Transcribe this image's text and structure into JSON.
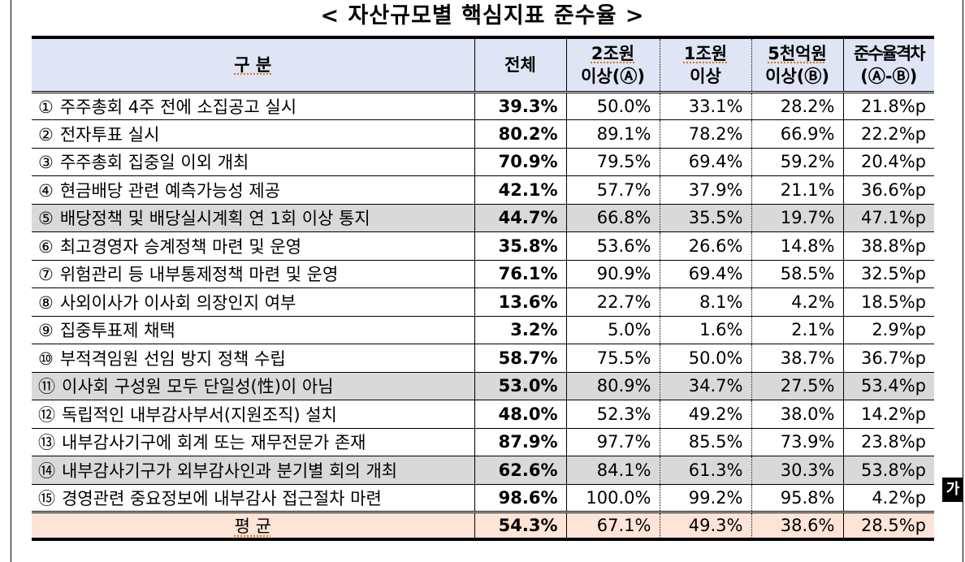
{
  "title": "< 자산규모별 핵심지표 준수율 >",
  "header": {
    "category": "구 분",
    "total": "전체",
    "col_2t_line1": "2조원",
    "col_2t_line2": "이상(Ⓐ)",
    "col_1t_line1": "1조원",
    "col_1t_line2": "이상",
    "col_500b_line1": "5천억원",
    "col_500b_line2": "이상(Ⓑ)",
    "col_gap_line1": "준수율격차",
    "col_gap_line2": "(Ⓐ-Ⓑ)"
  },
  "rows": [
    {
      "no": "①",
      "label": "주주총회 4주 전에 소집공고 실시",
      "total": "39.3%",
      "t2": "50.0%",
      "t1": "33.1%",
      "b500": "28.2%",
      "gap": "21.8%p",
      "shaded": false
    },
    {
      "no": "②",
      "label": "전자투표 실시",
      "total": "80.2%",
      "t2": "89.1%",
      "t1": "78.2%",
      "b500": "66.9%",
      "gap": "22.2%p",
      "shaded": false
    },
    {
      "no": "③",
      "label": "주주총회 집중일 이외 개최",
      "total": "70.9%",
      "t2": "79.5%",
      "t1": "69.4%",
      "b500": "59.2%",
      "gap": "20.4%p",
      "shaded": false
    },
    {
      "no": "④",
      "label": "현금배당 관련 예측가능성 제공",
      "total": "42.1%",
      "t2": "57.7%",
      "t1": "37.9%",
      "b500": "21.1%",
      "gap": "36.6%p",
      "shaded": false
    },
    {
      "no": "⑤",
      "label": "배당정책 및 배당실시계획 연 1회 이상 통지",
      "total": "44.7%",
      "t2": "66.8%",
      "t1": "35.5%",
      "b500": "19.7%",
      "gap": "47.1%p",
      "shaded": true
    },
    {
      "no": "⑥",
      "label": "최고경영자 승계정책 마련 및 운영",
      "total": "35.8%",
      "t2": "53.6%",
      "t1": "26.6%",
      "b500": "14.8%",
      "gap": "38.8%p",
      "shaded": false
    },
    {
      "no": "⑦",
      "label": "위험관리 등 내부통제정책 마련 및 운영",
      "total": "76.1%",
      "t2": "90.9%",
      "t1": "69.4%",
      "b500": "58.5%",
      "gap": "32.5%p",
      "shaded": false
    },
    {
      "no": "⑧",
      "label": "사외이사가 이사회 의장인지 여부",
      "total": "13.6%",
      "t2": "22.7%",
      "t1": "8.1%",
      "b500": "4.2%",
      "gap": "18.5%p",
      "shaded": false
    },
    {
      "no": "⑨",
      "label": "집중투표제 채택",
      "total": "3.2%",
      "t2": "5.0%",
      "t1": "1.6%",
      "b500": "2.1%",
      "gap": "2.9%p",
      "shaded": false
    },
    {
      "no": "⑩",
      "label": "부적격임원 선임 방지 정책 수립",
      "total": "58.7%",
      "t2": "75.5%",
      "t1": "50.0%",
      "b500": "38.7%",
      "gap": "36.7%p",
      "shaded": false
    },
    {
      "no": "⑪",
      "label": "이사회 구성원 모두 단일성(性)이 아님",
      "total": "53.0%",
      "t2": "80.9%",
      "t1": "34.7%",
      "b500": "27.5%",
      "gap": "53.4%p",
      "shaded": true
    },
    {
      "no": "⑫",
      "label": "독립적인 내부감사부서(지원조직) 설치",
      "total": "48.0%",
      "t2": "52.3%",
      "t1": "49.2%",
      "b500": "38.0%",
      "gap": "14.2%p",
      "shaded": false
    },
    {
      "no": "⑬",
      "label": "내부감사기구에 회계 또는 재무전문가 존재",
      "total": "87.9%",
      "t2": "97.7%",
      "t1": "85.5%",
      "b500": "73.9%",
      "gap": "23.8%p",
      "shaded": false
    },
    {
      "no": "⑭",
      "label": "내부감사기구가 외부감사인과 분기별 회의 개최",
      "total": "62.6%",
      "t2": "84.1%",
      "t1": "61.3%",
      "b500": "30.3%",
      "gap": "53.8%p",
      "shaded": true
    },
    {
      "no": "⑮",
      "label": "경영관련 중요정보에 내부감사 접근절차 마련",
      "total": "98.6%",
      "t2": "100.0%",
      "t1": "99.2%",
      "b500": "95.8%",
      "gap": "4.2%p",
      "shaded": false
    }
  ],
  "average": {
    "label": "평 균",
    "total": "54.3%",
    "t2": "67.1%",
    "t1": "49.3%",
    "b500": "38.6%",
    "gap": "28.5%p"
  },
  "ime_indicator": "가",
  "colors": {
    "header_bg": "#dfe5f5",
    "shade_bg": "#d9d9d9",
    "average_bg": "#fde4d6"
  }
}
